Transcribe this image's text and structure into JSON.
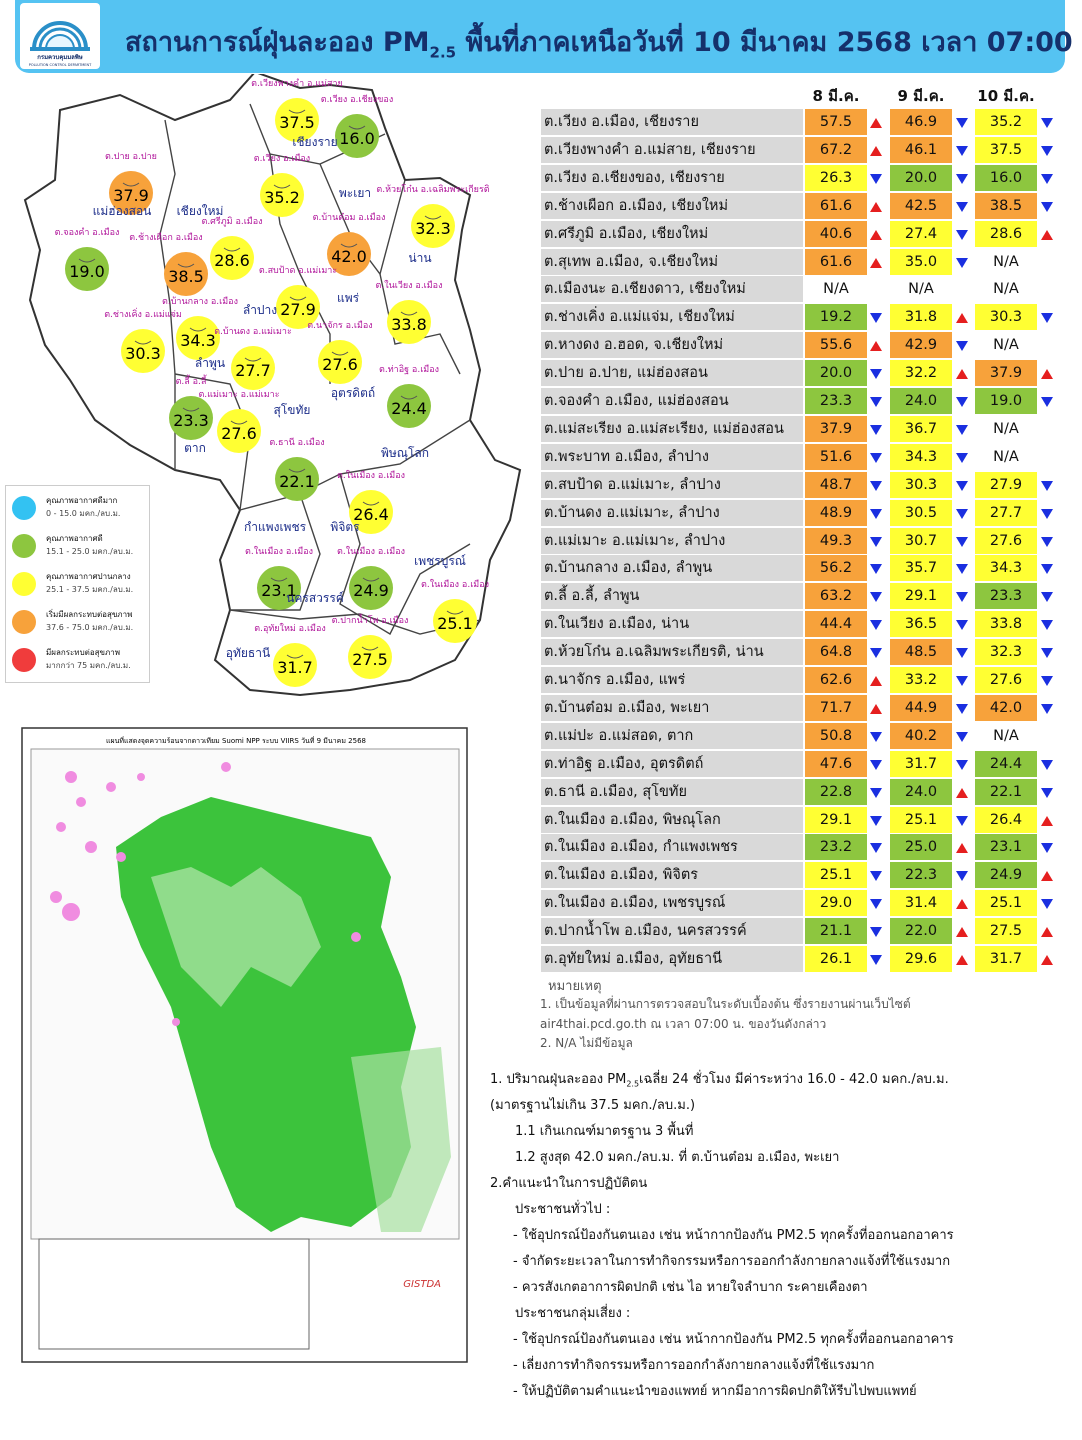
{
  "header": {
    "title": [
      "สถานการณ์ฝุ่นละออง PM",
      "2.5",
      " พื้นที่ภาคเหนือวันที่ 10 มีนาคม 2568 เวลา 07:00 น."
    ],
    "logo_name": "กรมควบคุมมลพิษ",
    "logo_sub": "POLLUTION CONTROL DEPARTMENT"
  },
  "map": {
    "stations": [
      {
        "value": "37.5",
        "label": "ต.เวียงพางคำ อ.แม่สาย",
        "color": "#ffff33"
      },
      {
        "value": "16.0",
        "label": "ต.เวียง อ.เชียงของ",
        "color": "#8dc63f"
      },
      {
        "value": "37.9",
        "label": "ต.ปาย อ.ปาย",
        "color": "#f7a23b"
      },
      {
        "value": "35.2",
        "label": "ต.เวียง อ.เมือง",
        "color": "#ffff33"
      },
      {
        "value": "32.3",
        "label": "ต.ห้วยโก๋น อ.เฉลิมพระเกียรติ",
        "color": "#ffff33"
      },
      {
        "value": "42.0",
        "label": "ต.บ้านต๋อม อ.เมือง",
        "color": "#f7a23b"
      },
      {
        "value": "19.0",
        "label": "ต.จองคำ อ.เมือง",
        "color": "#8dc63f"
      },
      {
        "value": "28.6",
        "label": "ต.ศรีภูมิ อ.เมือง",
        "color": "#ffff33"
      },
      {
        "value": "38.5",
        "label": "ต.ช้างเผือก อ.เมือง",
        "color": "#f7a23b"
      },
      {
        "value": "27.9",
        "label": "ต.สบป้าด อ.แม่เมาะ",
        "color": "#ffff33"
      },
      {
        "value": "33.8",
        "label": "ต.ในเวียง อ.เมือง",
        "color": "#ffff33"
      },
      {
        "value": "34.3",
        "label": "ต.บ้านกลาง อ.เมือง",
        "color": "#ffff33"
      },
      {
        "value": "30.3",
        "label": "ต.ช่างเคิ่ง อ.แม่แจ่ม",
        "color": "#ffff33"
      },
      {
        "value": "27.7",
        "label": "ต.บ้านดง อ.แม่เมาะ",
        "color": "#ffff33"
      },
      {
        "value": "27.6",
        "label": "ต.นาจักร อ.เมือง",
        "color": "#ffff33"
      },
      {
        "value": "24.4",
        "label": "ต.ท่าอิฐ อ.เมือง",
        "color": "#8dc63f"
      },
      {
        "value": "23.3",
        "label": "ต.ลี้ อ.ลี้",
        "color": "#8dc63f"
      },
      {
        "value": "27.6",
        "label": "ต.แม่เมาะ อ.แม่เมาะ",
        "color": "#ffff33"
      },
      {
        "value": "22.1",
        "label": "ต.ธานี อ.เมือง",
        "color": "#8dc63f"
      },
      {
        "value": "26.4",
        "label": "ต.ในเมือง อ.เมือง",
        "color": "#ffff33"
      },
      {
        "value": "23.1",
        "label": "ต.ในเมือง อ.เมือง",
        "color": "#8dc63f"
      },
      {
        "value": "24.9",
        "label": "ต.ในเมือง อ.เมือง",
        "color": "#8dc63f"
      },
      {
        "value": "25.1",
        "label": "ต.ในเมือง อ.เมือง",
        "color": "#ffff33"
      },
      {
        "value": "31.7",
        "label": "ต.อุทัยใหม่ อ.เมือง",
        "color": "#ffff33"
      },
      {
        "value": "27.5",
        "label": "ต.ปากน้ำโพ อ.เมือง",
        "color": "#ffff33"
      }
    ],
    "provinces": [
      "เชียงราย",
      "พะเยา",
      "แม่ฮ่องสอน",
      "เชียงใหม่",
      "น่าน",
      "แพร่",
      "ลำปาง",
      "ลำพูน",
      "อุตรดิตถ์",
      "สุโขทัย",
      "ตาก",
      "พิษณุโลก",
      "กำแพงเพชร",
      "พิจิตร",
      "เพชรบูรณ์",
      "นครสวรรค์",
      "อุทัยธานี"
    ]
  },
  "legend": [
    {
      "title": "คุณภาพอากาศดีมาก",
      "range": "0 - 15.0 มคก./ลบ.ม.",
      "color": "#33c2f2"
    },
    {
      "title": "คุณภาพอากาศดี",
      "range": "15.1 - 25.0 มคก./ลบ.ม.",
      "color": "#8dc63f"
    },
    {
      "title": "คุณภาพอากาศปานกลาง",
      "range": "25.1 - 37.5 มคก./ลบ.ม.",
      "color": "#ffff33"
    },
    {
      "title": "เริ่มมีผลกระทบต่อสุขภาพ",
      "range": "37.6 - 75.0 มคก./ลบ.ม.",
      "color": "#f7a23b"
    },
    {
      "title": "มีผลกระทบต่อสุขภาพ",
      "range": "มากกว่า 75 มคก./ลบ.ม.",
      "color": "#f03c3c"
    }
  ],
  "satellite": {
    "title": "แผนที่แสดงจุดความร้อนจากดาวเทียม Suomi NPP ระบบ VIIRS  วันที่ 9 มีนาคม 2568",
    "brand": "GISTDA"
  },
  "table": {
    "columns": [
      "8 มี.ค.",
      "9 มี.ค.",
      "10 มี.ค."
    ],
    "rows": [
      {
        "name": "ต.เวียง อ.เมือง, เชียงราย",
        "values": [
          "57.5",
          "46.9",
          "35.2"
        ],
        "colors": [
          "#f7a23b",
          "#f7a23b",
          "#ffff33"
        ],
        "trends": [
          "up",
          "down",
          "down"
        ]
      },
      {
        "name": "ต.เวียงพางคำ อ.แม่สาย, เชียงราย",
        "values": [
          "67.2",
          "46.1",
          "37.5"
        ],
        "colors": [
          "#f7a23b",
          "#f7a23b",
          "#ffff33"
        ],
        "trends": [
          "up",
          "down",
          "down"
        ]
      },
      {
        "name": "ต.เวียง อ.เชียงของ, เชียงราย",
        "values": [
          "26.3",
          "20.0",
          "16.0"
        ],
        "colors": [
          "#ffff33",
          "#8dc63f",
          "#8dc63f"
        ],
        "trends": [
          "down",
          "down",
          "down"
        ]
      },
      {
        "name": "ต.ช้างเผือก อ.เมือง, เชียงใหม่",
        "values": [
          "61.6",
          "42.5",
          "38.5"
        ],
        "colors": [
          "#f7a23b",
          "#f7a23b",
          "#f7a23b"
        ],
        "trends": [
          "up",
          "down",
          "down"
        ]
      },
      {
        "name": "ต.ศรีภูมิ อ.เมือง, เชียงใหม่",
        "values": [
          "40.6",
          "27.4",
          "28.6"
        ],
        "colors": [
          "#f7a23b",
          "#ffff33",
          "#ffff33"
        ],
        "trends": [
          "up",
          "down",
          "up"
        ]
      },
      {
        "name": "ต.สุเทพ  อ.เมือง, จ.เชียงใหม่",
        "values": [
          "61.6",
          "35.0",
          "N/A"
        ],
        "colors": [
          "#f7a23b",
          "#ffff33",
          null
        ],
        "trends": [
          "up",
          "down",
          null
        ]
      },
      {
        "name": "ต.เมืองนะ อ.เชียงดาว, เชียงใหม่",
        "values": [
          "N/A",
          "N/A",
          "N/A"
        ],
        "colors": [
          null,
          null,
          null
        ],
        "trends": [
          null,
          null,
          null
        ]
      },
      {
        "name": "ต.ช่างเคิ่ง อ.แม่แจ่ม, เชียงใหม่",
        "values": [
          "19.2",
          "31.8",
          "30.3"
        ],
        "colors": [
          "#8dc63f",
          "#ffff33",
          "#ffff33"
        ],
        "trends": [
          "down",
          "up",
          "down"
        ]
      },
      {
        "name": "ต.หางดง อ.ฮอด, จ.เชียงใหม่",
        "values": [
          "55.6",
          "42.9",
          "N/A"
        ],
        "colors": [
          "#f7a23b",
          "#f7a23b",
          null
        ],
        "trends": [
          "up",
          "down",
          null
        ]
      },
      {
        "name": "ต.ปาย อ.ปาย, แม่ฮ่องสอน",
        "values": [
          "20.0",
          "32.2",
          "37.9"
        ],
        "colors": [
          "#8dc63f",
          "#ffff33",
          "#f7a23b"
        ],
        "trends": [
          "down",
          "up",
          "up"
        ]
      },
      {
        "name": "ต.จองคำ อ.เมือง, แม่ฮ่องสอน",
        "values": [
          "23.3",
          "24.0",
          "19.0"
        ],
        "colors": [
          "#8dc63f",
          "#8dc63f",
          "#8dc63f"
        ],
        "trends": [
          "down",
          "down",
          "down"
        ]
      },
      {
        "name": "ต.แม่สะเรียง อ.แม่สะเรียง, แม่ฮ่องสอน",
        "values": [
          "37.9",
          "36.7",
          "N/A"
        ],
        "colors": [
          "#f7a23b",
          "#ffff33",
          null
        ],
        "trends": [
          "down",
          "down",
          null
        ]
      },
      {
        "name": "ต.พระบาท อ.เมือง, ลำปาง",
        "values": [
          "51.6",
          "34.3",
          "N/A"
        ],
        "colors": [
          "#f7a23b",
          "#ffff33",
          null
        ],
        "trends": [
          "down",
          "down",
          null
        ]
      },
      {
        "name": "ต.สบป้าด อ.แม่เมาะ, ลำปาง",
        "values": [
          "48.7",
          "30.3",
          "27.9"
        ],
        "colors": [
          "#f7a23b",
          "#ffff33",
          "#ffff33"
        ],
        "trends": [
          "down",
          "down",
          "down"
        ]
      },
      {
        "name": "ต.บ้านดง อ.แม่เมาะ, ลำปาง",
        "values": [
          "48.9",
          "30.5",
          "27.7"
        ],
        "colors": [
          "#f7a23b",
          "#ffff33",
          "#ffff33"
        ],
        "trends": [
          "down",
          "down",
          "down"
        ]
      },
      {
        "name": "ต.แม่เมาะ อ.แม่เมาะ, ลำปาง",
        "values": [
          "49.3",
          "30.7",
          "27.6"
        ],
        "colors": [
          "#f7a23b",
          "#ffff33",
          "#ffff33"
        ],
        "trends": [
          "down",
          "down",
          "down"
        ]
      },
      {
        "name": "ต.บ้านกลาง อ.เมือง, ลำพูน",
        "values": [
          "56.2",
          "35.7",
          "34.3"
        ],
        "colors": [
          "#f7a23b",
          "#ffff33",
          "#ffff33"
        ],
        "trends": [
          "down",
          "down",
          "down"
        ]
      },
      {
        "name": "ต.ลี้ อ.ลี้, ลำพูน",
        "values": [
          "63.2",
          "29.1",
          "23.3"
        ],
        "colors": [
          "#f7a23b",
          "#ffff33",
          "#8dc63f"
        ],
        "trends": [
          "down",
          "down",
          "down"
        ]
      },
      {
        "name": "ต.ในเวียง อ.เมือง, น่าน",
        "values": [
          "44.4",
          "36.5",
          "33.8"
        ],
        "colors": [
          "#f7a23b",
          "#ffff33",
          "#ffff33"
        ],
        "trends": [
          "down",
          "down",
          "down"
        ]
      },
      {
        "name": "ต.ห้วยโก๋น อ.เฉลิมพระเกียรติ, น่าน",
        "values": [
          "64.8",
          "48.5",
          "32.3"
        ],
        "colors": [
          "#f7a23b",
          "#f7a23b",
          "#ffff33"
        ],
        "trends": [
          "down",
          "down",
          "down"
        ]
      },
      {
        "name": "ต.นาจักร อ.เมือง, แพร่",
        "values": [
          "62.6",
          "33.2",
          "27.6"
        ],
        "colors": [
          "#f7a23b",
          "#ffff33",
          "#ffff33"
        ],
        "trends": [
          "up",
          "down",
          "down"
        ]
      },
      {
        "name": "ต.บ้านต๋อม อ.เมือง, พะเยา",
        "values": [
          "71.7",
          "44.9",
          "42.0"
        ],
        "colors": [
          "#f7a23b",
          "#f7a23b",
          "#f7a23b"
        ],
        "trends": [
          "up",
          "down",
          "down"
        ]
      },
      {
        "name": "ต.แม่ปะ อ.แม่สอด, ตาก",
        "values": [
          "50.8",
          "40.2",
          "N/A"
        ],
        "colors": [
          "#f7a23b",
          "#f7a23b",
          null
        ],
        "trends": [
          "down",
          "down",
          null
        ]
      },
      {
        "name": "ต.ท่าอิฐ อ.เมือง, อุตรดิตถ์",
        "values": [
          "47.6",
          "31.7",
          "24.4"
        ],
        "colors": [
          "#f7a23b",
          "#ffff33",
          "#8dc63f"
        ],
        "trends": [
          "down",
          "down",
          "down"
        ]
      },
      {
        "name": "ต.ธานี อ.เมือง, สุโขทัย",
        "values": [
          "22.8",
          "24.0",
          "22.1"
        ],
        "colors": [
          "#8dc63f",
          "#8dc63f",
          "#8dc63f"
        ],
        "trends": [
          "down",
          "up",
          "down"
        ]
      },
      {
        "name": "ต.ในเมือง อ.เมือง, พิษณุโลก",
        "values": [
          "29.1",
          "25.1",
          "26.4"
        ],
        "colors": [
          "#ffff33",
          "#ffff33",
          "#ffff33"
        ],
        "trends": [
          "down",
          "down",
          "up"
        ]
      },
      {
        "name": "ต.ในเมือง อ.เมือง, กำแพงเพชร",
        "values": [
          "23.2",
          "25.0",
          "23.1"
        ],
        "colors": [
          "#8dc63f",
          "#8dc63f",
          "#8dc63f"
        ],
        "trends": [
          "down",
          "up",
          "down"
        ]
      },
      {
        "name": "ต.ในเมือง อ.เมือง, พิจิตร",
        "values": [
          "25.1",
          "22.3",
          "24.9"
        ],
        "colors": [
          "#ffff33",
          "#8dc63f",
          "#8dc63f"
        ],
        "trends": [
          "down",
          "down",
          "up"
        ]
      },
      {
        "name": "ต.ในเมือง อ.เมือง, เพชรบูรณ์",
        "values": [
          "29.0",
          "31.4",
          "25.1"
        ],
        "colors": [
          "#ffff33",
          "#ffff33",
          "#ffff33"
        ],
        "trends": [
          "down",
          "up",
          "down"
        ]
      },
      {
        "name": "ต.ปากน้ำโพ อ.เมือง, นครสวรรค์",
        "values": [
          "21.1",
          "22.0",
          "27.5"
        ],
        "colors": [
          "#8dc63f",
          "#8dc63f",
          "#ffff33"
        ],
        "trends": [
          "down",
          "up",
          "up"
        ]
      },
      {
        "name": "ต.อุทัยใหม่ อ.เมือง, อุทัยธานี",
        "values": [
          "26.1",
          "29.6",
          "31.7"
        ],
        "colors": [
          "#ffff33",
          "#ffff33",
          "#ffff33"
        ],
        "trends": [
          "down",
          "up",
          "up"
        ]
      }
    ]
  },
  "notes": {
    "heading": "หมายเหตุ",
    "lines": [
      "1. เป็นข้อมูลที่ผ่านการตรวจสอบในระดับเบื้องต้น ซึ่งรายงานผ่านเว็บไซต์",
      "air4thai.pcd.go.th  ณ  เวลา 07:00  น.  ของวันดังกล่าว",
      "2.  N/A  ไม่มีข้อมูล"
    ]
  },
  "summary": {
    "first": [
      "1. ปริมาณฝุ่นละออง PM",
      "2.5",
      "เฉลี่ย 24 ชั่วโมง มีค่าระหว่าง 16.0 - 42.0 มคก./ลบ.ม."
    ],
    "lines": [
      "(มาตรฐานไม่เกิน 37.5 มคก./ลบ.ม.)",
      "1.1 เกินเกณฑ์มาตรฐาน 3  พื้นที่",
      "1.2 สูงสุด 42.0  มคก./ลบ.ม.  ที่  ต.บ้านต๋อม อ.เมือง,  พะเยา",
      "2.คำแนะนำในการปฏิบัติตน",
      "ประชาชนทั่วไป :",
      "-  ใช้อุปกรณ์ป้องกันตนเอง  เช่น  หน้ากากป้องกัน  PM2.5  ทุกครั้งที่ออกนอกอาคาร",
      "-  จำกัดระยะเวลาในการทำกิจกรรมหรือการออกกำลังกายกลางแจ้งที่ใช้แรงมาก",
      "-  ควรสังเกตอาการผิดปกติ  เช่น  ไอ  หายใจลำบาก  ระคายเคืองตา",
      "ประชาชนกลุ่มเสี่ยง  :",
      "-  ใช้อุปกรณ์ป้องกันตนเอง  เช่น  หน้ากากป้องกัน  PM2.5  ทุกครั้งที่ออกนอกอาคาร",
      "-  เลี่ยงการทำกิจกรรมหรือการออกกำลังกายกลางแจ้งที่ใช้แรงมาก",
      "-  ให้ปฏิบัติตามคำแนะนำของแพทย์  หากมีอาการผิดปกติให้รีบไปพบแพทย์"
    ]
  }
}
